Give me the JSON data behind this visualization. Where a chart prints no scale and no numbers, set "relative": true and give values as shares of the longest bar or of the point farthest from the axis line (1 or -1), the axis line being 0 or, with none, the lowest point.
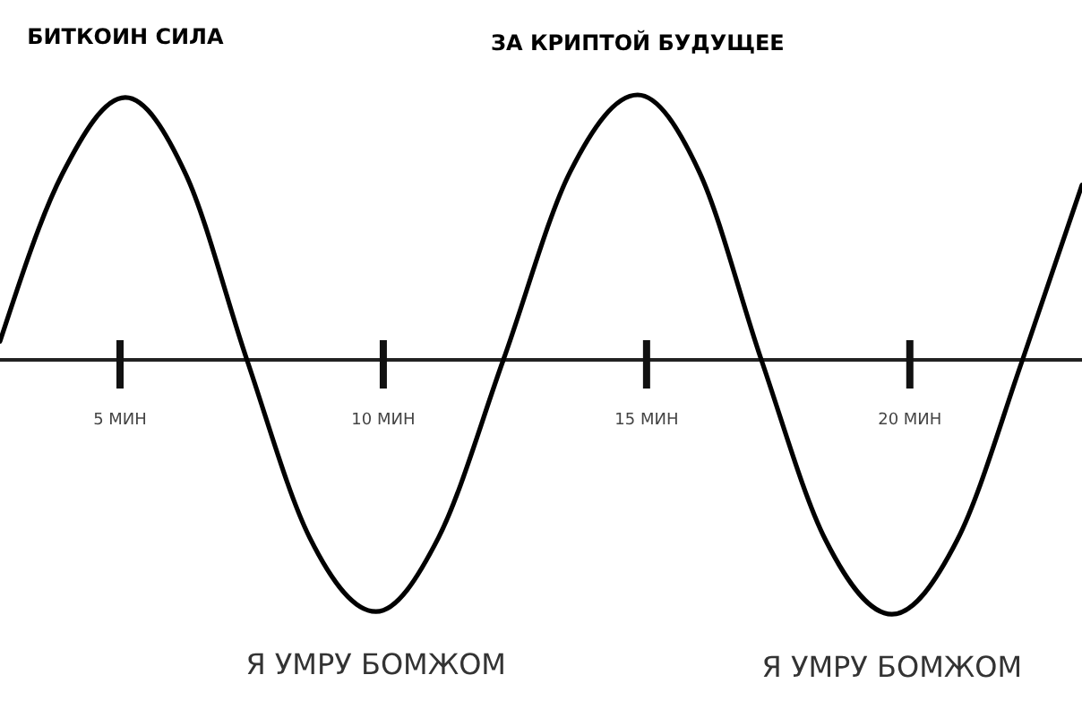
{
  "chart_data": {
    "type": "line",
    "relative": true,
    "x": [
      2.72,
      3.9,
      5.1,
      6.25,
      7.41,
      8.6,
      9.86,
      11.05,
      12.28,
      13.55,
      14.83,
      16.0,
      17.18,
      18.4,
      19.66,
      20.9,
      22.14,
      23.27
    ],
    "series": [
      {
        "color": "#000000",
        "values": [
          0.07,
          0.7,
          0.99,
          0.7,
          0,
          -0.67,
          -0.95,
          -0.67,
          0,
          0.71,
          1,
          0.71,
          0,
          -0.68,
          -0.96,
          -0.68,
          0,
          0.66
        ]
      }
    ],
    "xlim": [
      2.72,
      23.27
    ],
    "xticks": [
      {
        "value": 5,
        "label": "5 МИН"
      },
      {
        "value": 10,
        "label": "10 МИН"
      },
      {
        "value": 15,
        "label": "15 МИН"
      },
      {
        "value": 20,
        "label": "20 МИН"
      }
    ],
    "annotations": [
      {
        "text": "БИТКОИН СИЛА",
        "x": 5.1,
        "y": 0.99
      },
      {
        "text": "ЗА КРИПТОЙ БУДУЩЕЕ",
        "x": 14.83,
        "y": 1
      },
      {
        "text": "Я УМРУ БОМЖОМ",
        "x": 9.86,
        "y": -0.95
      },
      {
        "text": "Я УМРУ БОМЖОМ",
        "x": 19.66,
        "y": -0.96
      }
    ],
    "grid": false,
    "marker": "none",
    "line_style": "solid"
  }
}
